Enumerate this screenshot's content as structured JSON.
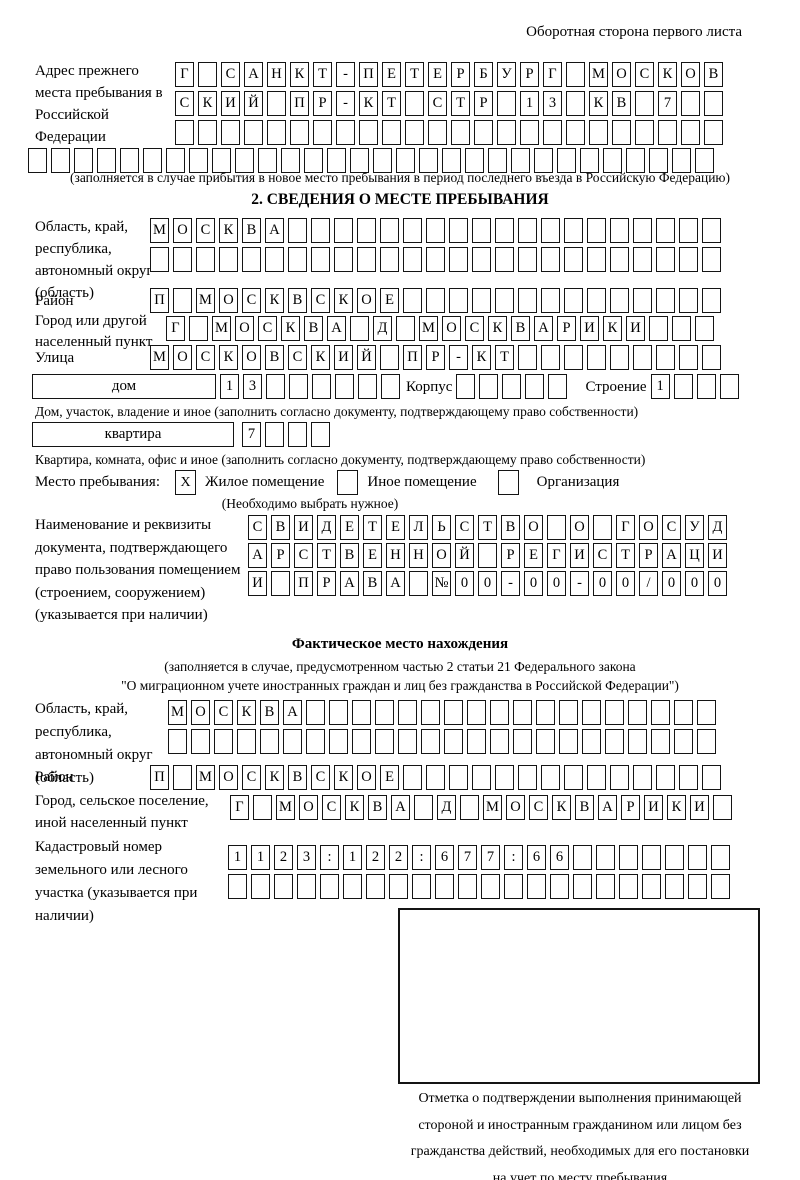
{
  "page": {
    "header_note": "Оборотная сторона первого листа"
  },
  "prev_address": {
    "label": "Адрес прежнего места пребывания в Российской Федерации",
    "row1": [
      "Г",
      "",
      "С",
      "А",
      "Н",
      "К",
      "Т",
      "-",
      "П",
      "Е",
      "Т",
      "Е",
      "Р",
      "Б",
      "У",
      "Р",
      "Г",
      "",
      "М",
      "О",
      "С",
      "К",
      "О",
      "В"
    ],
    "row2": [
      "С",
      "К",
      "И",
      "Й",
      "",
      "П",
      "Р",
      "-",
      "К",
      "Т",
      "",
      "С",
      "Т",
      "Р",
      "",
      "1",
      "3",
      "",
      "К",
      "В",
      "",
      "7",
      "",
      ""
    ],
    "row3": [
      "",
      "",
      "",
      "",
      "",
      "",
      "",
      "",
      "",
      "",
      "",
      "",
      "",
      "",
      "",
      "",
      "",
      "",
      "",
      "",
      "",
      "",
      "",
      ""
    ],
    "row4": [
      "",
      "",
      "",
      "",
      "",
      "",
      "",
      "",
      "",
      "",
      "",
      "",
      "",
      "",
      "",
      "",
      "",
      "",
      "",
      "",
      "",
      "",
      "",
      "",
      "",
      "",
      "",
      "",
      "",
      ""
    ],
    "note": "(заполняется в случае прибытия в новое место пребывания в период последнего въезда в Российскую Федерацию)"
  },
  "section2": {
    "title": "2. СВЕДЕНИЯ О МЕСТЕ ПРЕБЫВАНИЯ",
    "region": {
      "label": "Область, край, республика, автономный округ (область)",
      "row1": [
        "М",
        "О",
        "С",
        "К",
        "В",
        "А",
        "",
        "",
        "",
        "",
        "",
        "",
        "",
        "",
        "",
        "",
        "",
        "",
        "",
        "",
        "",
        "",
        "",
        "",
        ""
      ],
      "row2": [
        "",
        "",
        "",
        "",
        "",
        "",
        "",
        "",
        "",
        "",
        "",
        "",
        "",
        "",
        "",
        "",
        "",
        "",
        "",
        "",
        "",
        "",
        "",
        "",
        ""
      ]
    },
    "district": {
      "label": "Район",
      "row": [
        "П",
        "",
        "М",
        "О",
        "С",
        "К",
        "В",
        "С",
        "К",
        "О",
        "Е",
        "",
        "",
        "",
        "",
        "",
        "",
        "",
        "",
        "",
        "",
        "",
        "",
        "",
        ""
      ]
    },
    "city": {
      "label": "Город или другой населенный пункт",
      "row": [
        "Г",
        "",
        "М",
        "О",
        "С",
        "К",
        "В",
        "А",
        "",
        "Д",
        "",
        "М",
        "О",
        "С",
        "К",
        "В",
        "А",
        "Р",
        "И",
        "К",
        "И",
        "",
        "",
        ""
      ]
    },
    "street": {
      "label": "Улица",
      "row": [
        "М",
        "О",
        "С",
        "К",
        "О",
        "В",
        "С",
        "К",
        "И",
        "Й",
        "",
        "П",
        "Р",
        "-",
        "К",
        "Т",
        "",
        "",
        "",
        "",
        "",
        "",
        "",
        "",
        ""
      ]
    },
    "house": {
      "box_label": "дом",
      "cells": [
        "1",
        "3",
        "",
        "",
        "",
        "",
        "",
        ""
      ],
      "korpus_label": "Корпус",
      "korpus_cells": [
        "",
        "",
        "",
        "",
        ""
      ],
      "stroenie_label": "Строение",
      "stroenie_cells": [
        "1",
        "",
        "",
        ""
      ]
    },
    "house_note": "Дом, участок, владение и иное (заполнить согласно документу, подтверждающему право собственности)",
    "apartment": {
      "box_label": "квартира",
      "cells": [
        "7",
        "",
        "",
        ""
      ]
    },
    "apartment_note": "Квартира, комната, офис и иное (заполнить согласно документу, подтверждающему право собственности)",
    "stay_place": {
      "label": "Место пребывания:",
      "option1": {
        "mark": "X",
        "label": "Жилое помещение"
      },
      "option2": {
        "mark": "",
        "label": "Иное помещение"
      },
      "option3": {
        "mark": "",
        "label": "Организация"
      },
      "hint": "(Необходимо выбрать нужное)"
    },
    "document": {
      "label": "Наименование и реквизиты документа, подтверждающего право пользования помещением (строением, сооружением) (указывается при наличии)",
      "row1": [
        "С",
        "В",
        "И",
        "Д",
        "Е",
        "Т",
        "Е",
        "Л",
        "Ь",
        "С",
        "Т",
        "В",
        "О",
        "",
        "О",
        "",
        "Г",
        "О",
        "С",
        "У",
        "Д"
      ],
      "row2": [
        "А",
        "Р",
        "С",
        "Т",
        "В",
        "Е",
        "Н",
        "Н",
        "О",
        "Й",
        "",
        "Р",
        "Е",
        "Г",
        "И",
        "С",
        "Т",
        "Р",
        "А",
        "Ц",
        "И"
      ],
      "row3": [
        "И",
        "",
        "П",
        "Р",
        "А",
        "В",
        "А",
        "",
        "№",
        "0",
        "0",
        "-",
        "0",
        "0",
        "-",
        "0",
        "0",
        "/",
        "0",
        "0",
        "0"
      ]
    }
  },
  "actual_location": {
    "title": "Фактическое место нахождения",
    "subtitle1": "(заполняется в случае, предусмотренном частью 2 статьи 21 Федерального закона",
    "subtitle2": "\"О миграционном учете иностранных граждан и лиц без гражданства в Российской Федерации\")",
    "region": {
      "label": "Область, край, республика, автономный округ (область)",
      "row1": [
        "М",
        "О",
        "С",
        "К",
        "В",
        "А",
        "",
        "",
        "",
        "",
        "",
        "",
        "",
        "",
        "",
        "",
        "",
        "",
        "",
        "",
        "",
        "",
        "",
        ""
      ],
      "row2": [
        "",
        "",
        "",
        "",
        "",
        "",
        "",
        "",
        "",
        "",
        "",
        "",
        "",
        "",
        "",
        "",
        "",
        "",
        "",
        "",
        "",
        "",
        "",
        ""
      ]
    },
    "district": {
      "label": "Район",
      "row": [
        "П",
        "",
        "М",
        "О",
        "С",
        "К",
        "В",
        "С",
        "К",
        "О",
        "Е",
        "",
        "",
        "",
        "",
        "",
        "",
        "",
        "",
        "",
        "",
        "",
        "",
        "",
        ""
      ]
    },
    "city": {
      "label": "Город, сельское поселение, иной населенный пункт",
      "row": [
        "Г",
        "",
        "М",
        "О",
        "С",
        "К",
        "В",
        "А",
        "",
        "Д",
        "",
        "М",
        "О",
        "С",
        "К",
        "В",
        "А",
        "Р",
        "И",
        "К",
        "И",
        ""
      ]
    },
    "cadastre": {
      "label": "Кадастровый номер земельного или лесного участка (указывается при наличии)",
      "row1": [
        "1",
        "1",
        "2",
        "3",
        ":",
        "1",
        "2",
        "2",
        ":",
        "6",
        "7",
        "7",
        ":",
        "6",
        "6",
        "",
        "",
        "",
        "",
        "",
        "",
        ""
      ],
      "row2": [
        "",
        "",
        "",
        "",
        "",
        "",
        "",
        "",
        "",
        "",
        "",
        "",
        "",
        "",
        "",
        "",
        "",
        "",
        "",
        "",
        "",
        ""
      ]
    },
    "stamp_note_line1": "Отметка о подтверждении выполнения принимающей",
    "stamp_note_line2": "стороной и иностранным гражданином или лицом без",
    "stamp_note_line3": "гражданства действий, необходимых для его постановки",
    "stamp_note_line4": "на учет по месту пребывания"
  },
  "colors": {
    "ink": "#141414",
    "paper": "#ffffff"
  }
}
